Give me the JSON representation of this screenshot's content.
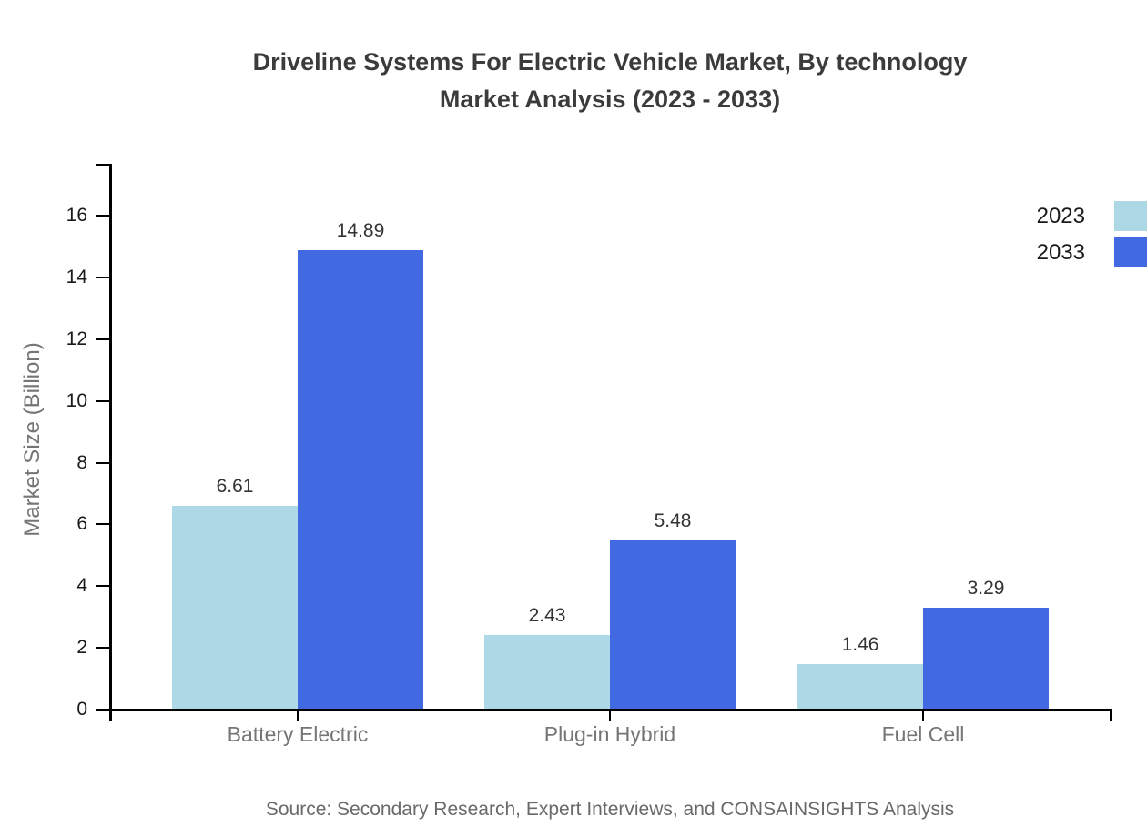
{
  "page": {
    "title_lines": [
      "Driveline Systems For Electric Vehicle Market, By technology",
      "Market Analysis (2023 - 2033)"
    ],
    "source": "Source: Secondary Research, Expert Interviews, and CONSAINSIGHTS Analysis"
  },
  "chart_data": {
    "type": "bar",
    "title": "Driveline Systems For Electric Vehicle Market, By technology Market Analysis (2023 - 2033)",
    "categories": [
      "Battery Electric",
      "Plug-in Hybrid",
      "Fuel Cell"
    ],
    "series": [
      {
        "name": "2023",
        "color": "#ADD8E6",
        "values": [
          6.61,
          2.43,
          1.46
        ]
      },
      {
        "name": "2033",
        "color": "#4169E1",
        "values": [
          14.89,
          5.48,
          3.29
        ]
      }
    ],
    "xlabel": "",
    "ylabel": "Market Size (Billion)",
    "ylim": [
      0,
      16
    ],
    "yticks": [
      0,
      2,
      4,
      6,
      8,
      10,
      12,
      14,
      16
    ],
    "grid": false,
    "legend_position": "top-right",
    "value_labels": true
  },
  "colors": {
    "title": "#3b3b3b",
    "axis": "#000000",
    "ytick_label": "#1a1a1a",
    "category_label": "#757575",
    "value_label": "#333333",
    "source": "#696969",
    "background": "#ffffff",
    "series_2023": "#ADD8E6",
    "series_2033": "#4169E1"
  }
}
